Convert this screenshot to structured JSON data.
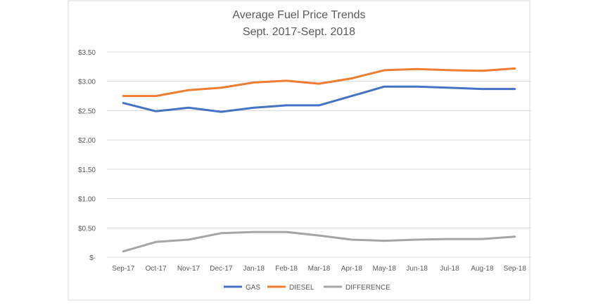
{
  "chart_data": {
    "type": "line",
    "title": [
      "Average Fuel Price Trends",
      "Sept. 2017-Sept. 2018"
    ],
    "xlabel": "",
    "ylabel": "",
    "categories": [
      "Sep-17",
      "Oct-17",
      "Nov-17",
      "Dec-17",
      "Jan-18",
      "Feb-18",
      "Mar-18",
      "Apr-18",
      "May-18",
      "Jun-18",
      "Jul-18",
      "Aug-18",
      "Sep-18"
    ],
    "ylim": [
      0,
      3.5
    ],
    "yticks": [
      0,
      0.5,
      1.0,
      1.5,
      2.0,
      2.5,
      3.0,
      3.5
    ],
    "ytick_labels": [
      "$-",
      "$0.50",
      "$1.00",
      "$1.50",
      "$2.00",
      "$2.50",
      "$3.00",
      "$3.50"
    ],
    "grid": "horizontal",
    "legend": "bottom",
    "series": [
      {
        "name": "GAS",
        "color": "#4472c4",
        "values": [
          2.63,
          2.49,
          2.55,
          2.48,
          2.55,
          2.59,
          2.59,
          2.75,
          2.91,
          2.91,
          2.89,
          2.87,
          2.87
        ]
      },
      {
        "name": "DIESEL",
        "color": "#ed7d31",
        "values": [
          2.75,
          2.75,
          2.85,
          2.89,
          2.98,
          3.01,
          2.96,
          3.05,
          3.19,
          3.21,
          3.19,
          3.18,
          3.22
        ]
      },
      {
        "name": "DIFFERENCE",
        "color": "#a5a5a5",
        "values": [
          0.1,
          0.26,
          0.3,
          0.41,
          0.43,
          0.43,
          0.37,
          0.3,
          0.28,
          0.3,
          0.31,
          0.31,
          0.35
        ]
      }
    ]
  }
}
